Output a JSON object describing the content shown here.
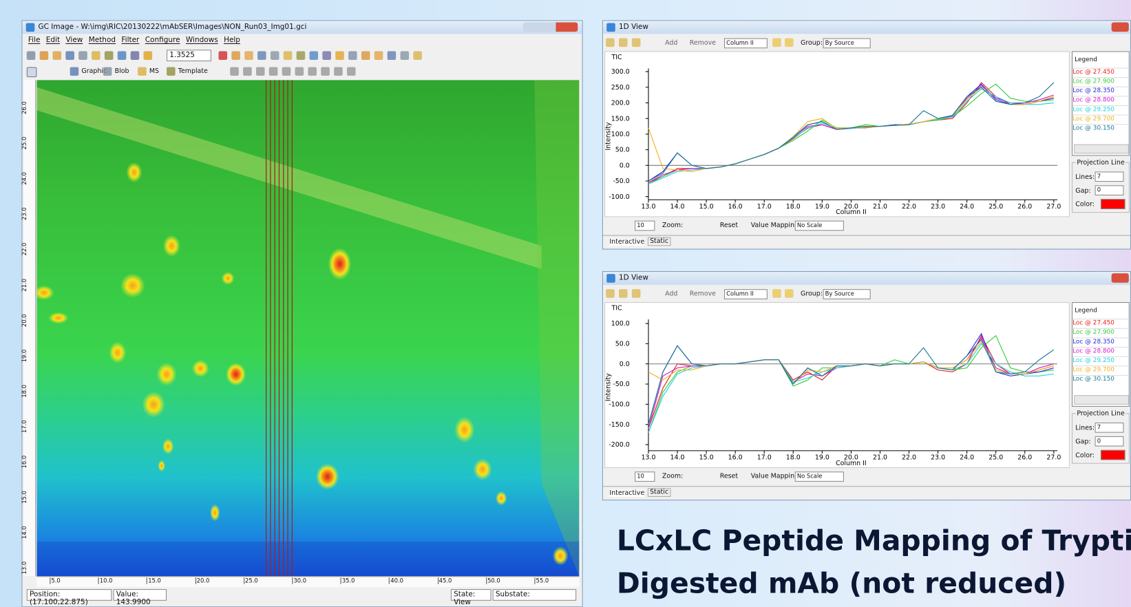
{
  "main_window": {
    "title": "GC Image - W:\\img\\RIC\\20130222\\mAbSER\\Images\\NON_Run03_Img01.gci",
    "menu": [
      "File",
      "Edit",
      "View",
      "Method",
      "Filter",
      "Configure",
      "Windows",
      "Help"
    ],
    "zoom_value": "1.3525",
    "toolbar2": [
      "Graphic",
      "Blob",
      "MS",
      "Template"
    ],
    "y_axis_labels": [
      "26.0",
      "25.0",
      "24.0",
      "23.0",
      "22.0",
      "21.0",
      "20.0",
      "19.0",
      "18.0",
      "17.0",
      "16.0",
      "15.0",
      "14.0",
      "13.0"
    ],
    "x_axis_labels": [
      "5.0",
      "10.0",
      "15.0",
      "20.0",
      "25.0",
      "30.0",
      "35.0",
      "40.0",
      "45.0",
      "50.0",
      "55.0"
    ],
    "status": [
      "Position: (17.100,22.875)",
      "Value: 143.9900",
      "State: View",
      "Substate:"
    ]
  },
  "panels": [
    {
      "title": "1D View",
      "add": "Add",
      "remove": "Remove",
      "column": "Column II",
      "group_label": "Group:",
      "group": "By Source",
      "legend_title": "Legend",
      "projection": "Projection Line",
      "lines_label": "Lines:",
      "lines": "7",
      "gap_label": "Gap:",
      "gap": "0",
      "color_label": "Color:",
      "step": "10",
      "zoom": "Zoom:",
      "reset": "Reset",
      "mapping_label": "Value Mapping:",
      "mapping": "No Scale",
      "tab1": "Interactive",
      "tab2": "Static"
    },
    {
      "title": "1D View",
      "add": "Add",
      "remove": "Remove",
      "column": "Column II",
      "group_label": "Group:",
      "group": "By Source",
      "legend_title": "Legend",
      "projection": "Projection Line",
      "lines_label": "Lines:",
      "lines": "7",
      "gap_label": "Gap:",
      "gap": "0",
      "color_label": "Color:",
      "step": "10",
      "zoom": "Zoom:",
      "reset": "Reset",
      "mapping_label": "Value Mapping:",
      "mapping": "No Scale",
      "tab1": "Interactive",
      "tab2": "Static"
    }
  ],
  "chart_data": [
    {
      "type": "line",
      "title": "TIC",
      "ylabel": "Intensity",
      "xlabel": "Column II",
      "x": [
        13,
        13.5,
        14,
        14.5,
        15,
        15.5,
        16,
        16.5,
        17,
        17.5,
        18,
        18.5,
        19,
        19.5,
        20,
        20.5,
        21,
        21.5,
        22,
        22.5,
        23,
        23.5,
        24,
        24.5,
        25,
        25.5,
        26,
        26.5,
        27
      ],
      "xlim": [
        13,
        27
      ],
      "ylim": [
        -110,
        310
      ],
      "xticks": [
        {
          "value": 13,
          "label": "13.0"
        },
        {
          "value": 14,
          "label": "14.0"
        },
        {
          "value": 15,
          "label": "15.0"
        },
        {
          "value": 16,
          "label": "16.0"
        },
        {
          "value": 17,
          "label": "17.0"
        },
        {
          "value": 18,
          "label": "18.0"
        },
        {
          "value": 19,
          "label": "19.0"
        },
        {
          "value": 20,
          "label": "20.0"
        },
        {
          "value": 21,
          "label": "21.0"
        },
        {
          "value": 22,
          "label": "22.0"
        },
        {
          "value": 23,
          "label": "23.0"
        },
        {
          "value": 24,
          "label": "24.0"
        },
        {
          "value": 25,
          "label": "25.0"
        },
        {
          "value": 26,
          "label": "26.0"
        },
        {
          "value": 27,
          "label": "27.0"
        }
      ],
      "yticks": [
        {
          "value": 300,
          "label": "300.0"
        },
        {
          "value": 250,
          "label": "250.0"
        },
        {
          "value": 200,
          "label": "200.0"
        },
        {
          "value": 150,
          "label": "150.0"
        },
        {
          "value": 100,
          "label": "100.0"
        },
        {
          "value": 50,
          "label": "50.0"
        },
        {
          "value": 0,
          "label": "0.0"
        },
        {
          "value": -50,
          "label": "-50.0"
        },
        {
          "value": -100,
          "label": "-100.0"
        }
      ],
      "series": [
        {
          "name": "Loc @ 27.450",
          "color": "#e8201c",
          "values": [
            -55,
            -35,
            -10,
            -10,
            -10,
            -5,
            5,
            20,
            35,
            55,
            85,
            120,
            130,
            115,
            120,
            120,
            125,
            130,
            130,
            140,
            145,
            150,
            200,
            265,
            220,
            195,
            195,
            205,
            220
          ]
        },
        {
          "name": "Loc @ 27.900",
          "color": "#3ccc3c",
          "values": [
            -60,
            -35,
            -15,
            -10,
            -10,
            -5,
            5,
            20,
            35,
            55,
            80,
            110,
            145,
            120,
            120,
            130,
            125,
            130,
            130,
            140,
            145,
            155,
            190,
            230,
            260,
            215,
            205,
            205,
            210
          ]
        },
        {
          "name": "Loc @ 28.350",
          "color": "#2a2ae0",
          "values": [
            -50,
            -20,
            40,
            0,
            -10,
            -5,
            5,
            20,
            35,
            55,
            90,
            130,
            140,
            115,
            120,
            125,
            125,
            130,
            130,
            140,
            150,
            160,
            220,
            260,
            210,
            195,
            195,
            205,
            215
          ]
        },
        {
          "name": "Loc @ 28.800",
          "color": "#d21ed2",
          "values": [
            -55,
            -30,
            -15,
            -10,
            -10,
            -5,
            5,
            20,
            35,
            55,
            90,
            125,
            130,
            115,
            118,
            122,
            125,
            128,
            132,
            140,
            148,
            158,
            215,
            255,
            215,
            200,
            200,
            210,
            225
          ]
        },
        {
          "name": "Loc @ 29.250",
          "color": "#22d2e0",
          "values": [
            -60,
            -40,
            -20,
            -15,
            -10,
            -5,
            5,
            20,
            35,
            55,
            88,
            118,
            135,
            118,
            118,
            122,
            125,
            128,
            130,
            140,
            148,
            155,
            205,
            245,
            220,
            200,
            195,
            195,
            200
          ]
        },
        {
          "name": "Loc @ 29.700",
          "color": "#f0b41e",
          "values": [
            120,
            -10,
            -15,
            -20,
            -10,
            -5,
            5,
            20,
            35,
            55,
            92,
            140,
            150,
            118,
            120,
            122,
            125,
            128,
            132,
            140,
            150,
            160,
            210,
            250,
            205,
            195,
            195,
            205,
            220
          ]
        },
        {
          "name": "Loc @ 30.150",
          "color": "#1a7a96",
          "values": [
            -50,
            -25,
            40,
            0,
            -10,
            -5,
            5,
            20,
            35,
            55,
            90,
            130,
            140,
            115,
            120,
            125,
            125,
            128,
            130,
            175,
            150,
            160,
            220,
            250,
            205,
            195,
            200,
            220,
            265
          ]
        }
      ]
    },
    {
      "type": "line",
      "title": "TIC",
      "ylabel": "Intensity",
      "xlabel": "Column II",
      "x": [
        13,
        13.5,
        14,
        14.5,
        15,
        15.5,
        16,
        16.5,
        17,
        17.5,
        18,
        18.5,
        19,
        19.5,
        20,
        20.5,
        21,
        21.5,
        22,
        22.5,
        23,
        23.5,
        24,
        24.5,
        25,
        25.5,
        26,
        26.5,
        27
      ],
      "xlim": [
        13,
        27
      ],
      "ylim": [
        -215,
        110
      ],
      "xticks": [
        {
          "value": 13,
          "label": "13.0"
        },
        {
          "value": 14,
          "label": "14.0"
        },
        {
          "value": 15,
          "label": "15.0"
        },
        {
          "value": 16,
          "label": "16.0"
        },
        {
          "value": 17,
          "label": "17.0"
        },
        {
          "value": 18,
          "label": "18.0"
        },
        {
          "value": 19,
          "label": "19.0"
        },
        {
          "value": 20,
          "label": "20.0"
        },
        {
          "value": 21,
          "label": "21.0"
        },
        {
          "value": 22,
          "label": "22.0"
        },
        {
          "value": 23,
          "label": "23.0"
        },
        {
          "value": 24,
          "label": "24.0"
        },
        {
          "value": 25,
          "label": "25.0"
        },
        {
          "value": 26,
          "label": "26.0"
        },
        {
          "value": 27,
          "label": "27.0"
        }
      ],
      "yticks": [
        {
          "value": 100,
          "label": "100.0"
        },
        {
          "value": 50,
          "label": "50.0"
        },
        {
          "value": 0,
          "label": "0.0"
        },
        {
          "value": -50,
          "label": "-50.0"
        },
        {
          "value": -100,
          "label": "-100.0"
        },
        {
          "value": -150,
          "label": "-150.0"
        },
        {
          "value": -200,
          "label": "-200.0"
        }
      ],
      "series": [
        {
          "name": "Loc @ 27.450",
          "color": "#e8201c",
          "values": [
            -160,
            -60,
            0,
            -5,
            -5,
            0,
            0,
            5,
            10,
            10,
            -40,
            -20,
            -40,
            -5,
            -5,
            0,
            -5,
            0,
            0,
            5,
            -15,
            -20,
            0,
            70,
            0,
            -25,
            -25,
            -15,
            -5
          ]
        },
        {
          "name": "Loc @ 27.900",
          "color": "#3ccc3c",
          "values": [
            -170,
            -70,
            -20,
            -5,
            -5,
            0,
            0,
            5,
            10,
            10,
            -55,
            -40,
            -10,
            -10,
            -5,
            0,
            -5,
            10,
            0,
            5,
            -10,
            -15,
            -10,
            40,
            70,
            -10,
            -20,
            -20,
            -15
          ]
        },
        {
          "name": "Loc @ 28.350",
          "color": "#2a2ae0",
          "values": [
            -150,
            -20,
            45,
            0,
            -5,
            0,
            0,
            5,
            10,
            10,
            -50,
            -10,
            -30,
            -5,
            -5,
            0,
            -5,
            0,
            0,
            5,
            -10,
            -15,
            20,
            75,
            -20,
            -30,
            -25,
            -20,
            -10
          ]
        },
        {
          "name": "Loc @ 28.800",
          "color": "#d21ed2",
          "values": [
            -160,
            -30,
            -10,
            -5,
            -5,
            0,
            0,
            5,
            10,
            10,
            -45,
            -25,
            -30,
            -10,
            -5,
            0,
            -5,
            0,
            0,
            5,
            -10,
            -10,
            10,
            65,
            -10,
            -25,
            -25,
            -10,
            0
          ]
        },
        {
          "name": "Loc @ 29.250",
          "color": "#22d2e0",
          "values": [
            -170,
            -80,
            -25,
            -10,
            -5,
            0,
            0,
            5,
            10,
            10,
            -45,
            -35,
            -20,
            -10,
            -5,
            0,
            -5,
            0,
            0,
            5,
            -10,
            -15,
            0,
            50,
            0,
            -20,
            -30,
            -30,
            -25
          ]
        },
        {
          "name": "Loc @ 29.700",
          "color": "#f0b41e",
          "values": [
            -20,
            -40,
            -15,
            -15,
            -5,
            0,
            0,
            5,
            10,
            10,
            -50,
            -15,
            -20,
            -5,
            -5,
            0,
            -5,
            0,
            0,
            5,
            -10,
            -10,
            10,
            55,
            -15,
            -25,
            -25,
            -15,
            -5
          ]
        },
        {
          "name": "Loc @ 30.150",
          "color": "#1a7a96",
          "values": [
            -150,
            -20,
            45,
            0,
            -5,
            0,
            0,
            5,
            10,
            10,
            -50,
            -10,
            -30,
            -5,
            -5,
            0,
            -5,
            0,
            0,
            40,
            -10,
            -15,
            20,
            60,
            -20,
            -25,
            -20,
            10,
            35
          ]
        }
      ]
    }
  ],
  "caption": [
    "LCxLC Peptide Mapping of Tryptic",
    "Digested mAb (not reduced)"
  ]
}
